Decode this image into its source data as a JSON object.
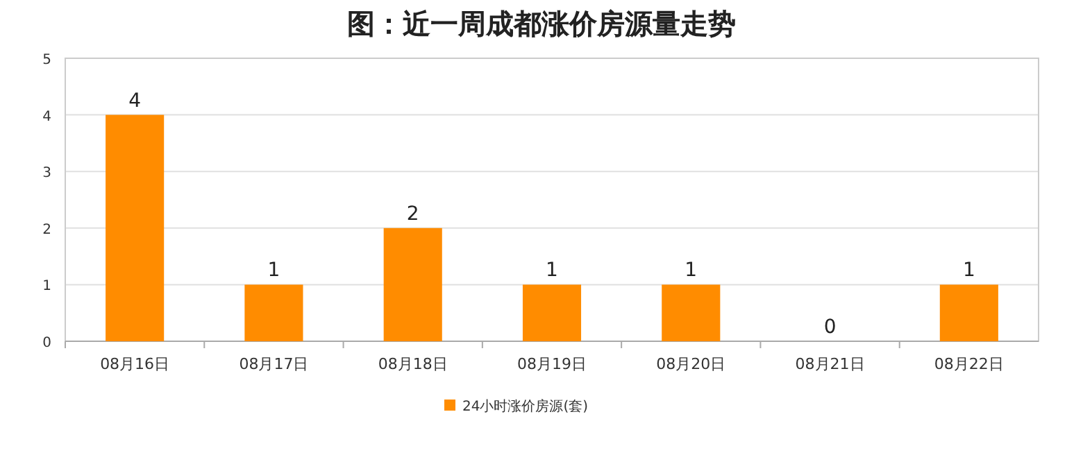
{
  "chart_data": {
    "type": "bar",
    "title": "图：近一周成都涨价房源量走势",
    "categories": [
      "08月16日",
      "08月17日",
      "08月18日",
      "08月19日",
      "08月20日",
      "08月21日",
      "08月22日"
    ],
    "series": [
      {
        "name": "24小时涨价房源(套)",
        "color": "#ff8c00",
        "values": [
          4,
          1,
          2,
          1,
          1,
          0,
          1
        ]
      }
    ],
    "ylim": [
      0,
      5
    ],
    "yticks": [
      0,
      1,
      2,
      3,
      4,
      5
    ],
    "grid": "y",
    "legend": "bottom",
    "data_labels": true
  }
}
